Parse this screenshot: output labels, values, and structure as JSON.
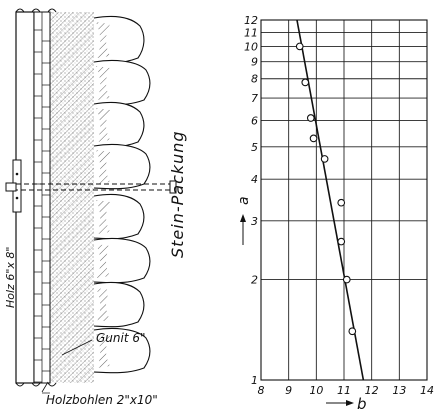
{
  "left_figure": {
    "labels": {
      "stone_packing": "Stein-Packung",
      "timber": "Holz 6\"x 8\"",
      "gunite": "Gunit 6\"",
      "planks": "Holzbohlen 2\"x10\""
    }
  },
  "chart_data": {
    "type": "scatter",
    "x_scale": "linear",
    "y_scale": "log",
    "xlim": [
      8,
      14
    ],
    "ylim": [
      1,
      12
    ],
    "x_ticks": [
      "8",
      "9",
      "10",
      "11",
      "12",
      "13",
      "14"
    ],
    "y_ticks": [
      "1",
      "2",
      "3",
      "4",
      "5",
      "6",
      "7",
      "8",
      "9",
      "10",
      "11",
      "12"
    ],
    "xlabel": "b",
    "ylabel": "a",
    "grid": true,
    "points": [
      {
        "x": 9.4,
        "y": 10.0
      },
      {
        "x": 9.6,
        "y": 7.8
      },
      {
        "x": 9.8,
        "y": 6.1
      },
      {
        "x": 9.9,
        "y": 5.3
      },
      {
        "x": 10.3,
        "y": 4.6
      },
      {
        "x": 10.9,
        "y": 3.4
      },
      {
        "x": 10.9,
        "y": 2.6
      },
      {
        "x": 11.1,
        "y": 2.0
      },
      {
        "x": 11.3,
        "y": 1.4
      }
    ],
    "fit_line": {
      "x": [
        9.3,
        11.7
      ],
      "y": [
        12.0,
        1.0
      ]
    }
  }
}
